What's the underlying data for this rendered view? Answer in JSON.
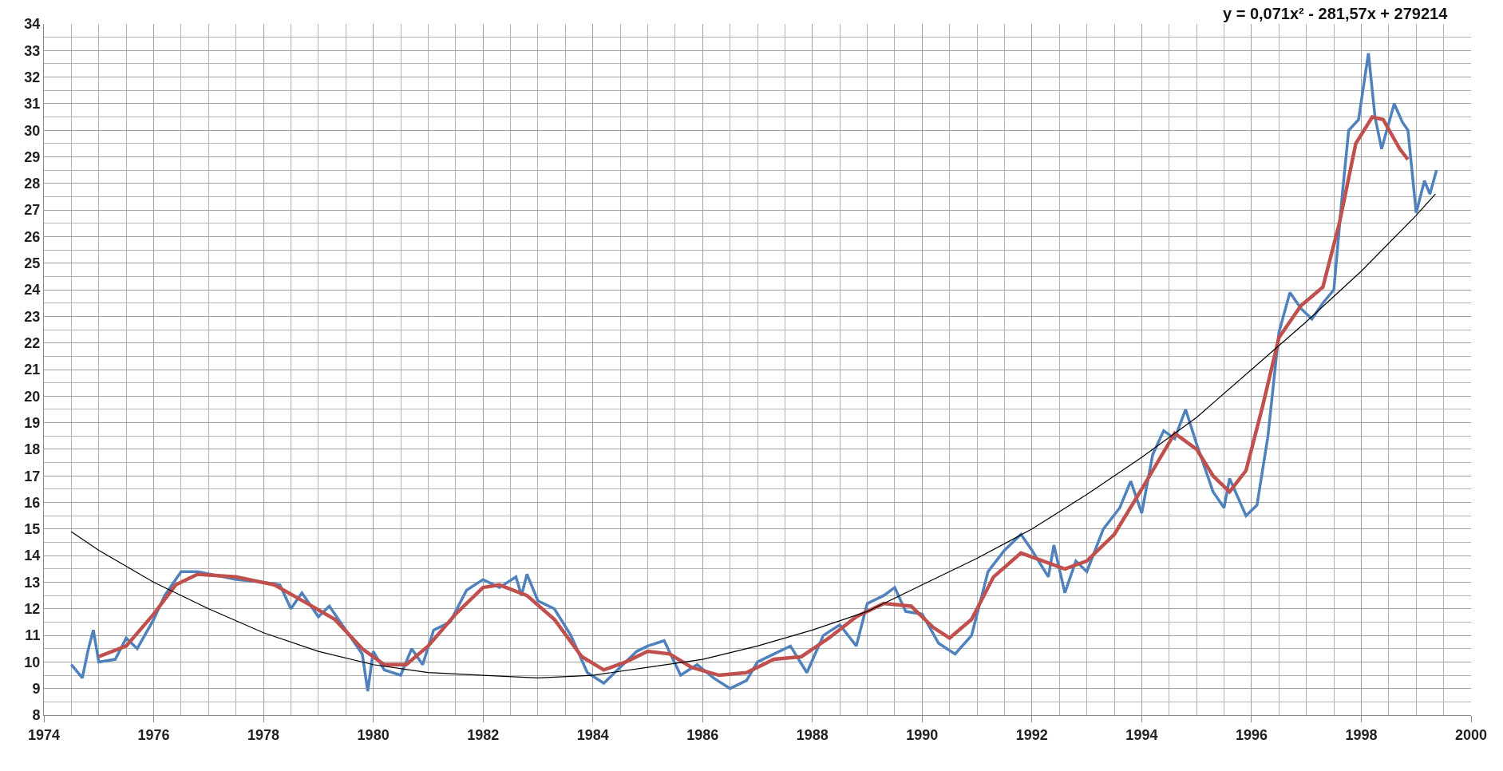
{
  "chart_data": {
    "type": "line",
    "annotations": [
      "y = 0,071x² - 281,57x + 279214"
    ],
    "xlim": [
      1974,
      2000
    ],
    "xticks": [
      1974,
      1976,
      1978,
      1980,
      1982,
      1984,
      1986,
      1988,
      1990,
      1992,
      1994,
      1996,
      1998,
      2000
    ],
    "ylim": [
      8,
      34
    ],
    "yticks": [
      8,
      9,
      10,
      11,
      12,
      13,
      14,
      15,
      16,
      17,
      18,
      19,
      20,
      21,
      22,
      23,
      24,
      25,
      26,
      27,
      28,
      29,
      30,
      31,
      32,
      33,
      34
    ],
    "grid": true,
    "marker": "none",
    "line_style": "solid",
    "series": [
      {
        "color": "#4f81bd",
        "x": [
          1974.5,
          1974.7,
          1974.8,
          1974.9,
          1975.0,
          1975.3,
          1975.5,
          1975.7,
          1976.0,
          1976.2,
          1976.5,
          1976.8,
          1977.5,
          1978.0,
          1978.3,
          1978.5,
          1978.7,
          1979.0,
          1979.2,
          1979.5,
          1979.8,
          1979.9,
          1980.0,
          1980.2,
          1980.5,
          1980.7,
          1980.9,
          1981.1,
          1981.4,
          1981.7,
          1982.0,
          1982.3,
          1982.6,
          1982.7,
          1982.8,
          1983.0,
          1983.3,
          1983.6,
          1983.9,
          1984.2,
          1984.5,
          1984.8,
          1985.0,
          1985.3,
          1985.6,
          1985.9,
          1986.2,
          1986.5,
          1986.8,
          1987.0,
          1987.3,
          1987.6,
          1987.9,
          1988.2,
          1988.5,
          1988.8,
          1989.0,
          1989.3,
          1989.5,
          1989.7,
          1990.0,
          1990.3,
          1990.6,
          1990.9,
          1991.2,
          1991.5,
          1991.8,
          1992.0,
          1992.3,
          1992.4,
          1992.6,
          1992.8,
          1993.0,
          1993.3,
          1993.6,
          1993.8,
          1994.0,
          1994.2,
          1994.4,
          1994.6,
          1994.8,
          1995.0,
          1995.3,
          1995.5,
          1995.6,
          1995.9,
          1996.1,
          1996.3,
          1996.5,
          1996.7,
          1996.9,
          1997.1,
          1997.3,
          1997.5,
          1997.65,
          1997.77,
          1997.95,
          1998.13,
          1998.25,
          1998.37,
          1998.6,
          1998.75,
          1998.85,
          1999.0,
          1999.15,
          1999.25,
          1999.37
        ],
        "values": [
          9.9,
          9.4,
          10.4,
          11.2,
          10.0,
          10.1,
          10.9,
          10.5,
          11.6,
          12.5,
          13.4,
          13.4,
          13.1,
          13.0,
          12.9,
          12.0,
          12.6,
          11.7,
          12.1,
          11.2,
          10.3,
          8.9,
          10.4,
          9.7,
          9.5,
          10.5,
          9.9,
          11.2,
          11.5,
          12.7,
          13.1,
          12.8,
          13.2,
          12.5,
          13.3,
          12.3,
          12.0,
          11.0,
          9.6,
          9.2,
          9.8,
          10.4,
          10.6,
          10.8,
          9.5,
          9.9,
          9.4,
          9.0,
          9.3,
          10.0,
          10.3,
          10.6,
          9.6,
          11.0,
          11.4,
          10.6,
          12.2,
          12.5,
          12.8,
          11.9,
          11.8,
          10.7,
          10.3,
          11.0,
          13.4,
          14.2,
          14.8,
          14.2,
          13.2,
          14.4,
          12.6,
          13.8,
          13.4,
          15.0,
          15.8,
          16.8,
          15.6,
          17.8,
          18.7,
          18.4,
          19.5,
          18.2,
          16.4,
          15.8,
          16.9,
          15.5,
          15.9,
          18.5,
          22.4,
          23.9,
          23.3,
          22.9,
          23.5,
          24.0,
          27.5,
          30.0,
          30.4,
          32.9,
          30.5,
          29.3,
          31.0,
          30.3,
          30.0,
          26.9,
          28.1,
          27.6,
          28.5
        ]
      },
      {
        "color": "#c0504d",
        "x": [
          1975.0,
          1975.5,
          1976.0,
          1976.4,
          1976.8,
          1977.5,
          1978.2,
          1978.8,
          1979.3,
          1979.8,
          1980.2,
          1980.6,
          1981.0,
          1981.5,
          1982.0,
          1982.3,
          1982.8,
          1983.3,
          1983.8,
          1984.2,
          1984.6,
          1985.0,
          1985.4,
          1985.8,
          1986.3,
          1986.8,
          1987.3,
          1987.8,
          1988.3,
          1988.8,
          1989.3,
          1989.8,
          1990.2,
          1990.5,
          1990.9,
          1991.3,
          1991.8,
          1992.2,
          1992.6,
          1993.0,
          1993.5,
          1994.0,
          1994.6,
          1995.0,
          1995.3,
          1995.6,
          1995.9,
          1996.2,
          1996.5,
          1996.9,
          1997.3,
          1997.6,
          1997.9,
          1998.2,
          1998.4,
          1998.7,
          1998.85
        ],
        "values": [
          10.2,
          10.6,
          11.8,
          12.9,
          13.3,
          13.2,
          12.9,
          12.2,
          11.6,
          10.5,
          9.9,
          9.9,
          10.6,
          11.8,
          12.8,
          12.9,
          12.5,
          11.6,
          10.2,
          9.7,
          10.0,
          10.4,
          10.3,
          9.8,
          9.5,
          9.6,
          10.1,
          10.2,
          10.9,
          11.7,
          12.2,
          12.1,
          11.3,
          10.9,
          11.6,
          13.2,
          14.1,
          13.8,
          13.5,
          13.8,
          14.8,
          16.5,
          18.6,
          18.0,
          17.0,
          16.4,
          17.2,
          19.6,
          22.2,
          23.4,
          24.1,
          26.5,
          29.5,
          30.5,
          30.4,
          29.3,
          28.9
        ]
      },
      {
        "color": "#000000",
        "x": [
          1974.5,
          1975,
          1976,
          1977,
          1978,
          1979,
          1980,
          1981,
          1982,
          1983,
          1984,
          1985,
          1986,
          1987,
          1988,
          1989,
          1990,
          1991,
          1992,
          1993,
          1994,
          1995,
          1996,
          1997,
          1998,
          1999,
          1999.35
        ],
        "values": [
          14.9,
          14.2,
          13.0,
          12.0,
          11.1,
          10.4,
          9.9,
          9.6,
          9.5,
          9.4,
          9.5,
          9.8,
          10.1,
          10.6,
          11.2,
          11.9,
          12.9,
          13.9,
          15.0,
          16.3,
          17.7,
          19.2,
          21.0,
          22.8,
          24.7,
          26.8,
          27.6
        ]
      }
    ]
  }
}
